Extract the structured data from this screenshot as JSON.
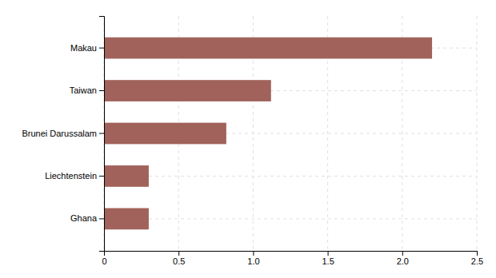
{
  "chart_data": {
    "type": "bar",
    "orientation": "horizontal",
    "categories": [
      "Ghana",
      "Liechtenstein",
      "Brunei Darussalam",
      "Taiwan",
      "Makau"
    ],
    "values": [
      0.3,
      0.3,
      0.82,
      1.12,
      2.2
    ],
    "color": "#a0625a",
    "xlim": [
      0,
      2.5
    ],
    "xticks": [
      0,
      0.5,
      {
        "value": 1.0,
        "label": "1.0"
      },
      1.5,
      {
        "value": 2.0,
        "label": "2.0"
      },
      2.5
    ],
    "grid": true
  }
}
